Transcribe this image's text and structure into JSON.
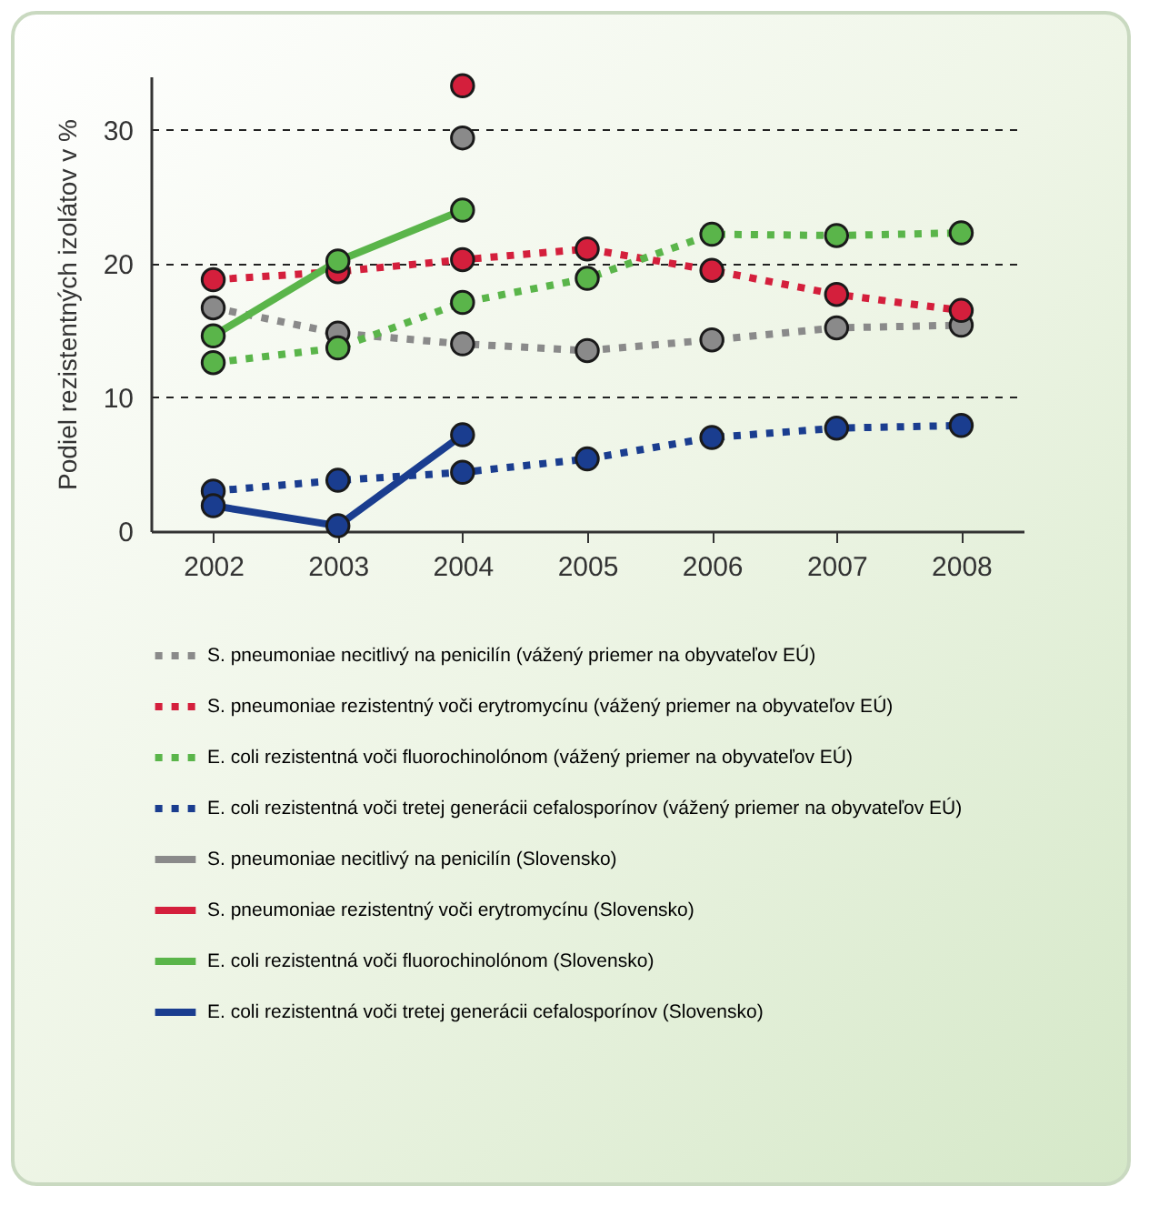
{
  "chart_data": {
    "type": "line",
    "ylabel": "Podiel rezistentných izolátov v %",
    "categories": [
      "2002",
      "2003",
      "2004",
      "2005",
      "2006",
      "2007",
      "2008"
    ],
    "ylim": [
      0,
      34
    ],
    "yticks": [
      0,
      10,
      20,
      30
    ],
    "grid": "y",
    "legend": "bottom",
    "marker": "circle",
    "series": [
      {
        "name": "S. pneumoniae necitlivý na penicilín (vážený priemer na obyvateľov EÚ)",
        "color": "#8a8a8a",
        "line_style": "dotted",
        "values": [
          16.7,
          14.8,
          14.0,
          13.5,
          14.3,
          15.2,
          15.4
        ]
      },
      {
        "name": "S. pneumoniae rezistentný voči erytromycínu (vážený priemer na obyvateľov EÚ)",
        "color": "#d41f3c",
        "line_style": "dotted",
        "values": [
          18.8,
          19.4,
          20.3,
          21.1,
          19.5,
          17.7,
          16.5
        ]
      },
      {
        "name": "E. coli rezistentná voči fluorochinolónom (vážený priemer na obyvateľov EÚ)",
        "color": "#5ab54a",
        "line_style": "dotted",
        "values": [
          12.6,
          13.7,
          17.1,
          18.9,
          22.2,
          22.1,
          22.3
        ]
      },
      {
        "name": "E. coli rezistentná voči tretej generácii cefalosporínov (vážený priemer na obyvateľov EÚ)",
        "color": "#1a3d8f",
        "line_style": "dotted",
        "values": [
          3.0,
          3.8,
          4.4,
          5.4,
          7.0,
          7.7,
          7.9
        ]
      },
      {
        "name": "S. pneumoniae necitlivý na penicilín (Slovensko)",
        "color": "#8a8a8a",
        "line_style": "solid",
        "values": [
          null,
          null,
          29.4,
          null,
          null,
          null,
          null
        ]
      },
      {
        "name": "S. pneumoniae rezistentný voči erytromycínu (Slovensko)",
        "color": "#d41f3c",
        "line_style": "solid",
        "values": [
          null,
          null,
          33.3,
          null,
          null,
          null,
          null
        ]
      },
      {
        "name": "E. coli rezistentná voči fluorochinolónom (Slovensko)",
        "color": "#5ab54a",
        "line_style": "solid",
        "values": [
          14.6,
          20.2,
          24.0,
          null,
          null,
          null,
          null
        ]
      },
      {
        "name": "E. coli rezistentná voči tretej generácii cefalosporínov (Slovensko)",
        "color": "#1a3d8f",
        "line_style": "solid",
        "values": [
          1.9,
          0.4,
          7.2,
          null,
          null,
          null,
          null
        ]
      }
    ]
  }
}
